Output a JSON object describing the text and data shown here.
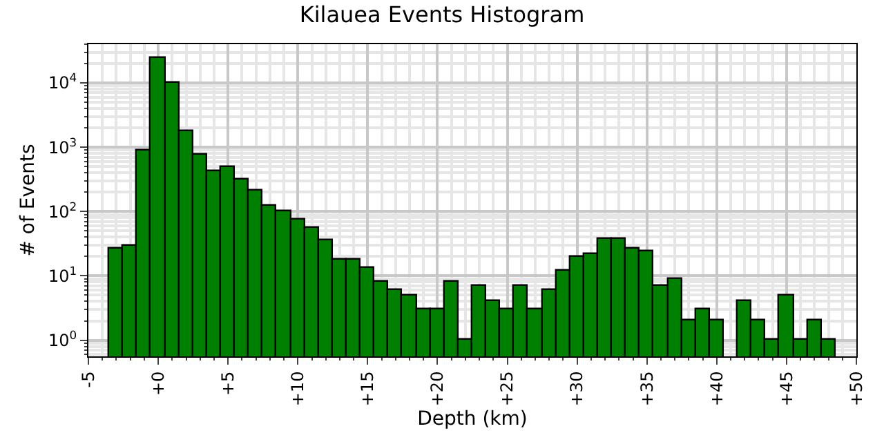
{
  "chart_data": {
    "type": "histogram",
    "title": "Kilauea Events Histogram",
    "xlabel": "Depth (km)",
    "ylabel": "# of Events",
    "bins": [
      -3.5,
      -2.5,
      -1.5,
      -0.5,
      0.5,
      1.5,
      2.5,
      3.5,
      4.5,
      5.5,
      6.5,
      7.5,
      8.5,
      9.5,
      10.5,
      11.5,
      12.5,
      13.5,
      14.5,
      15.5,
      16.5,
      17.5,
      18.5,
      19.5,
      20.5,
      21.5,
      22.5,
      23.5,
      24.5,
      25.5,
      26.5,
      27.5,
      28.5,
      29.5,
      30.5,
      31.5,
      32.5,
      33.5,
      34.5,
      35.5,
      36.5,
      37.5,
      38.5,
      39.5,
      40.5,
      41.5,
      42.5,
      43.5,
      44.5,
      45.5,
      46.5,
      47.5,
      48.5
    ],
    "values": [
      27,
      30,
      900,
      25000,
      10000,
      1800,
      750,
      430,
      480,
      310,
      210,
      120,
      100,
      75,
      55,
      35,
      18,
      18,
      13,
      8,
      6,
      5,
      3,
      3,
      8,
      1,
      7,
      4,
      3,
      7,
      3,
      6,
      12,
      20,
      22,
      38,
      38,
      27,
      24,
      7,
      9,
      2,
      3,
      2,
      null,
      4,
      2,
      1,
      5,
      1,
      2,
      1
    ],
    "color": "#008000",
    "log": "y",
    "grid": true,
    "xlim": [
      -5,
      50
    ],
    "xticks": [
      {
        "value": -5,
        "label": "-5"
      },
      {
        "value": 0,
        "label": "+0"
      },
      {
        "value": 5,
        "label": "+5"
      },
      {
        "value": 10,
        "label": "+10"
      },
      {
        "value": 15,
        "label": "+15"
      },
      {
        "value": 20,
        "label": "+20"
      },
      {
        "value": 25,
        "label": "+25"
      },
      {
        "value": 30,
        "label": "+30"
      },
      {
        "value": 35,
        "label": "+35"
      },
      {
        "value": 40,
        "label": "+40"
      },
      {
        "value": 45,
        "label": "+45"
      },
      {
        "value": 50,
        "label": "+50"
      }
    ],
    "ylim": [
      0.56,
      40000
    ],
    "yticks": [
      {
        "value": 1,
        "label": "10$^{0}$"
      },
      {
        "value": 10,
        "label": "10$^{1}$"
      },
      {
        "value": 100,
        "label": "10$^{2}$"
      },
      {
        "value": 1000,
        "label": "10$^{3}$"
      },
      {
        "value": 10000,
        "label": "10$^{4}$"
      }
    ]
  }
}
